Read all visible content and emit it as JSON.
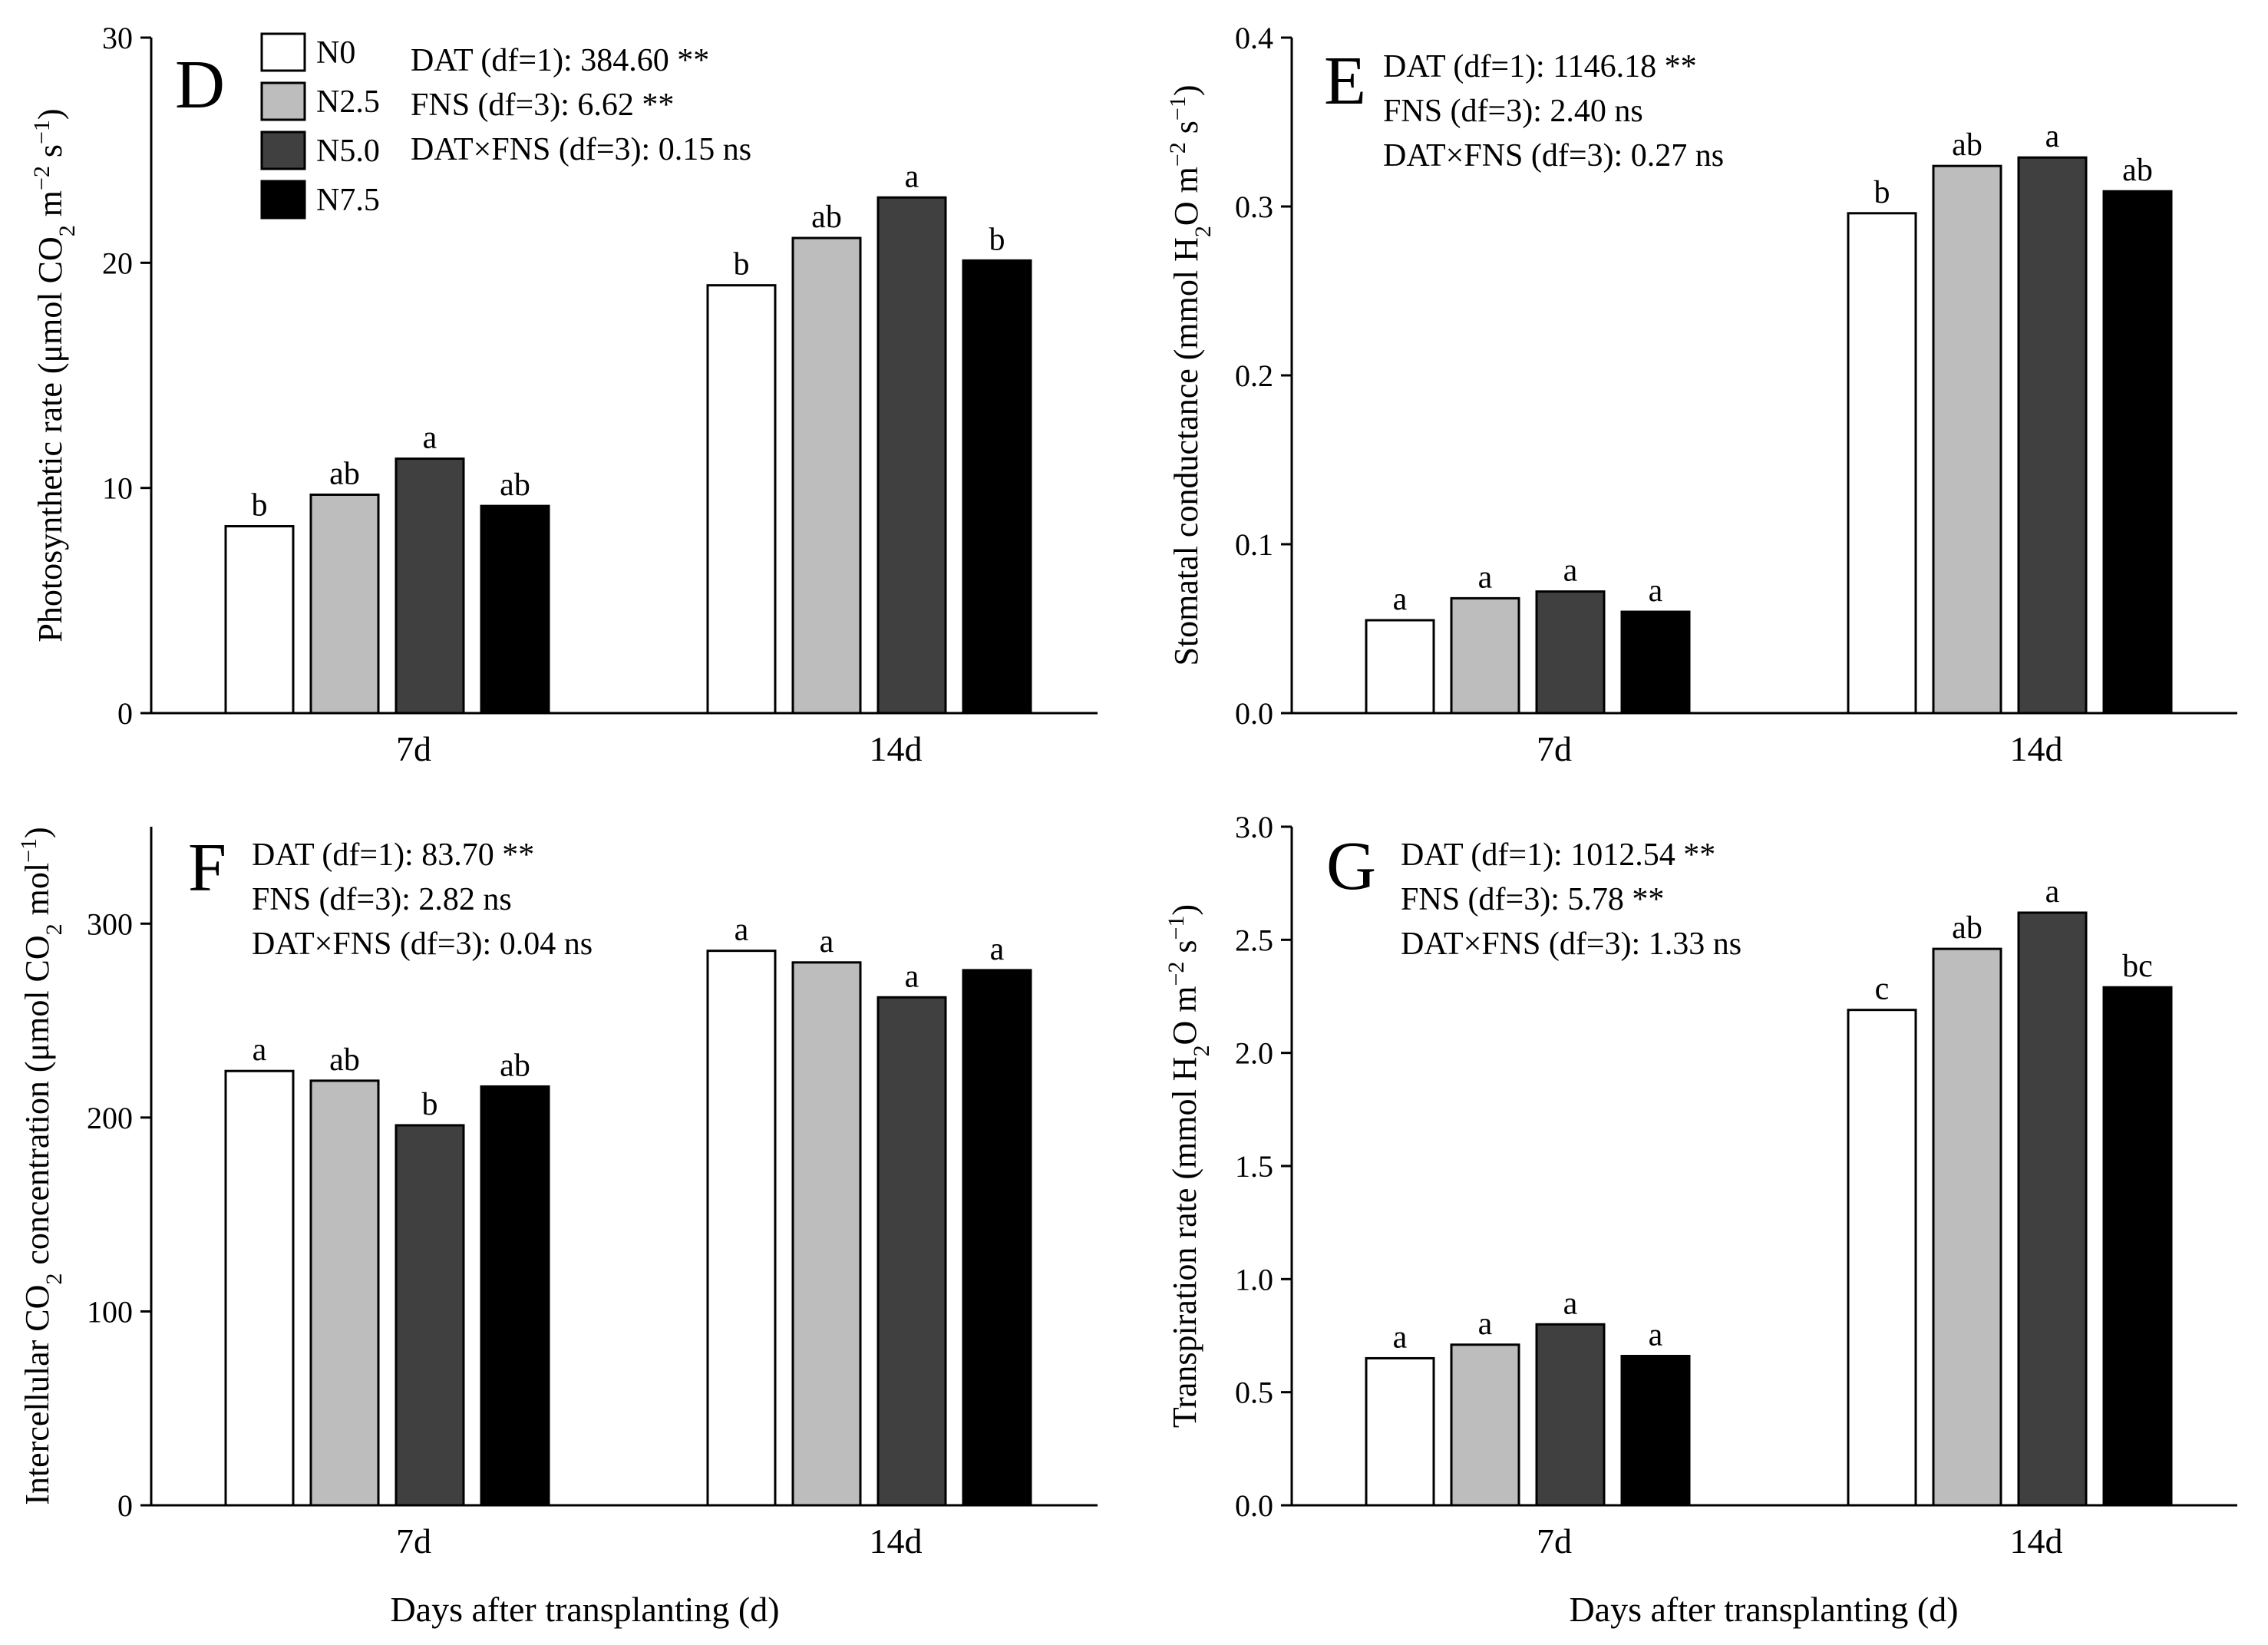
{
  "legend": {
    "items": [
      {
        "label": "N0",
        "color": "#ffffff"
      },
      {
        "label": "N2.5",
        "color": "#bdbdbd"
      },
      {
        "label": "N5.0",
        "color": "#404040"
      },
      {
        "label": "N7.5",
        "color": "#000000"
      }
    ]
  },
  "xlabels": [
    "Days after transplanting (d)",
    "Days after transplanting (d)"
  ],
  "chart_data": [
    {
      "type": "bar",
      "panel": "D",
      "categories": [
        "7d",
        "14d"
      ],
      "series": [
        {
          "name": "N0",
          "values": [
            8.3,
            19.0
          ],
          "letters": [
            "b",
            "b"
          ]
        },
        {
          "name": "N2.5",
          "values": [
            9.7,
            21.1
          ],
          "letters": [
            "ab",
            "ab"
          ]
        },
        {
          "name": "N5.0",
          "values": [
            11.3,
            22.9
          ],
          "letters": [
            "a",
            "a"
          ]
        },
        {
          "name": "N7.5",
          "values": [
            9.2,
            20.1
          ],
          "letters": [
            "ab",
            "b"
          ]
        }
      ],
      "ylim": [
        0,
        30
      ],
      "yticks": [
        0,
        10,
        20,
        30
      ],
      "ytick_labels": [
        "0",
        "10",
        "20",
        "30"
      ],
      "ylabel": {
        "main": "Photosynthetic rate (μmol CO",
        "sub": "2",
        "unit": " m",
        "sup1": "−2",
        "unit2": " s",
        "sup2": "−1",
        "close": ")"
      },
      "stats": [
        "DAT (df=1): 384.60 **",
        "FNS (df=3): 6.62 **",
        "DAT×FNS (df=3): 0.15 ns"
      ]
    },
    {
      "type": "bar",
      "panel": "E",
      "categories": [
        "7d",
        "14d"
      ],
      "series": [
        {
          "name": "N0",
          "values": [
            0.055,
            0.296
          ],
          "letters": [
            "a",
            "b"
          ]
        },
        {
          "name": "N2.5",
          "values": [
            0.068,
            0.324
          ],
          "letters": [
            "a",
            "ab"
          ]
        },
        {
          "name": "N5.0",
          "values": [
            0.072,
            0.329
          ],
          "letters": [
            "a",
            "a"
          ]
        },
        {
          "name": "N7.5",
          "values": [
            0.06,
            0.309
          ],
          "letters": [
            "a",
            "ab"
          ]
        }
      ],
      "ylim": [
        0,
        0.4
      ],
      "yticks": [
        0,
        0.1,
        0.2,
        0.3,
        0.4
      ],
      "ytick_labels": [
        "0.0",
        "0.1",
        "0.2",
        "0.3",
        "0.4"
      ],
      "ylabel": {
        "main": "Stomatal conductance (mmol H",
        "sub": "2",
        "unit": "O m",
        "sup1": "−2",
        "unit2": " s",
        "sup2": "−1",
        "close": ")"
      },
      "stats": [
        "DAT (df=1): 1146.18 **",
        "FNS (df=3): 2.40 ns",
        "DAT×FNS (df=3): 0.27 ns"
      ]
    },
    {
      "type": "bar",
      "panel": "F",
      "categories": [
        "7d",
        "14d"
      ],
      "series": [
        {
          "name": "N0",
          "values": [
            224,
            286
          ],
          "letters": [
            "a",
            "a"
          ]
        },
        {
          "name": "N2.5",
          "values": [
            219,
            280
          ],
          "letters": [
            "ab",
            "a"
          ]
        },
        {
          "name": "N5.0",
          "values": [
            196,
            262
          ],
          "letters": [
            "b",
            "a"
          ]
        },
        {
          "name": "N7.5",
          "values": [
            216,
            276
          ],
          "letters": [
            "ab",
            "a"
          ]
        }
      ],
      "ylim": [
        0,
        350
      ],
      "yticks": [
        0,
        100,
        200,
        300
      ],
      "ytick_labels": [
        "0",
        "100",
        "200",
        "300"
      ],
      "ylabel": {
        "main": "Intercellular CO",
        "sub": "2",
        "unit": " concentration (μmol CO",
        "sub2": "2",
        "unit2": " mol",
        "sup2": "−1",
        "close": ")"
      },
      "stats": [
        "DAT (df=1): 83.70 **",
        "FNS (df=3): 2.82 ns",
        "DAT×FNS (df=3): 0.04 ns"
      ]
    },
    {
      "type": "bar",
      "panel": "G",
      "categories": [
        "7d",
        "14d"
      ],
      "series": [
        {
          "name": "N0",
          "values": [
            0.65,
            2.19
          ],
          "letters": [
            "a",
            "c"
          ]
        },
        {
          "name": "N2.5",
          "values": [
            0.71,
            2.46
          ],
          "letters": [
            "a",
            "ab"
          ]
        },
        {
          "name": "N5.0",
          "values": [
            0.8,
            2.62
          ],
          "letters": [
            "a",
            "a"
          ]
        },
        {
          "name": "N7.5",
          "values": [
            0.66,
            2.29
          ],
          "letters": [
            "a",
            "bc"
          ]
        }
      ],
      "ylim": [
        0,
        3.0
      ],
      "yticks": [
        0,
        0.5,
        1.0,
        1.5,
        2.0,
        2.5,
        3.0
      ],
      "ytick_labels": [
        "0.0",
        "0.5",
        "1.0",
        "1.5",
        "2.0",
        "2.5",
        "3.0"
      ],
      "ylabel": {
        "main": "Transpiration rate (mmol H",
        "sub": "2",
        "unit": "O m",
        "sup1": "−2",
        "unit2": " s",
        "sup2": "−1",
        "close": ")"
      },
      "stats": [
        "DAT (df=1): 1012.54 **",
        "FNS (df=3): 5.78 **",
        "DAT×FNS (df=3): 1.33 ns"
      ]
    }
  ]
}
